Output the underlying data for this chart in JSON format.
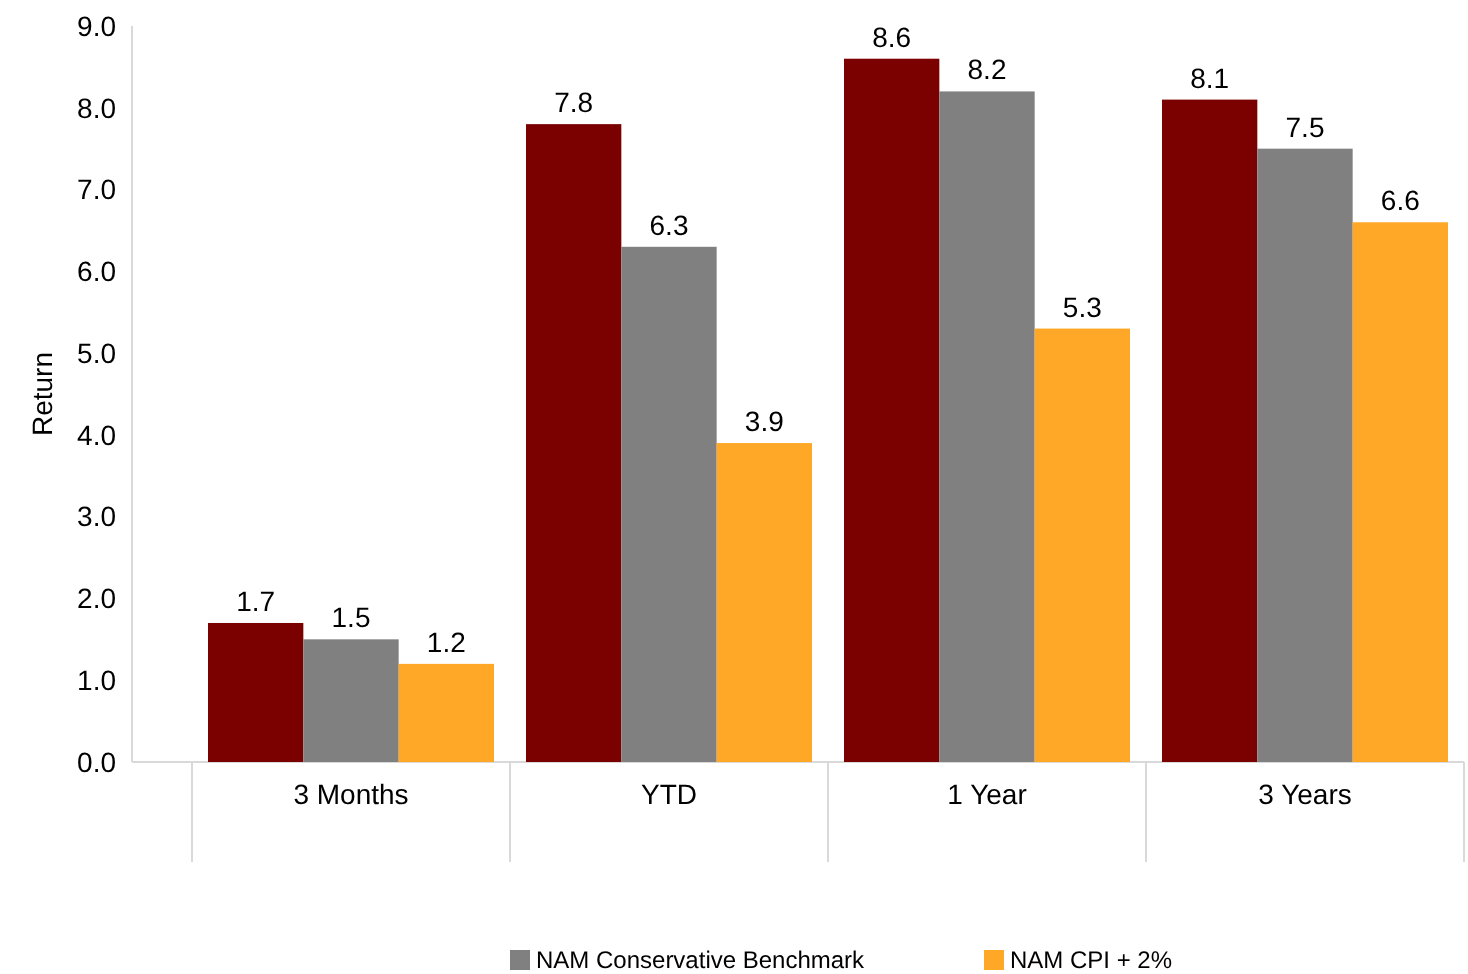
{
  "chart_data": {
    "type": "bar",
    "ylabel": "Return",
    "categories": [
      "3 Months",
      "YTD",
      "1 Year",
      "3 Years"
    ],
    "series": [
      {
        "color": "#7b0000",
        "values": [
          1.7,
          7.8,
          8.6,
          8.1
        ]
      },
      {
        "name": "NAM Conservative Benchmark",
        "color": "#808080",
        "values": [
          1.5,
          6.3,
          8.2,
          7.5
        ]
      },
      {
        "name": "NAM CPI + 2%",
        "color": "#ffa726",
        "values": [
          1.2,
          3.9,
          5.3,
          6.6
        ]
      }
    ],
    "ylim": [
      0,
      9
    ],
    "yticks": [
      {
        "value": 0,
        "label": "0.0"
      },
      {
        "value": 1,
        "label": "1.0"
      },
      {
        "value": 2,
        "label": "2.0"
      },
      {
        "value": 3,
        "label": "3.0"
      },
      {
        "value": 4,
        "label": "4.0"
      },
      {
        "value": 5,
        "label": "5.0"
      },
      {
        "value": 6,
        "label": "6.0"
      },
      {
        "value": 7,
        "label": "7.0"
      },
      {
        "value": 8,
        "label": "8.0"
      },
      {
        "value": 9,
        "label": "9.0"
      }
    ],
    "data_labels": true,
    "legend": "bottom"
  }
}
